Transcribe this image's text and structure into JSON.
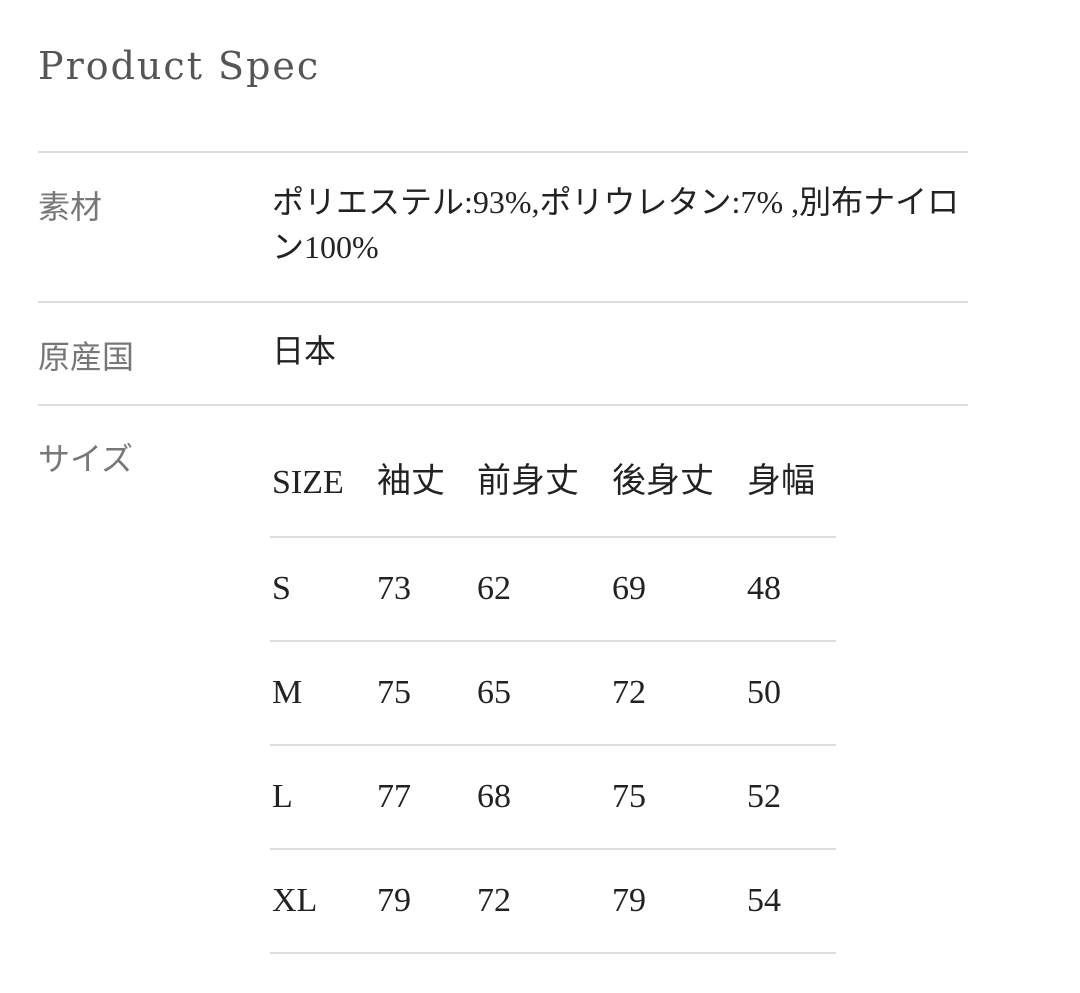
{
  "title": "Product Spec",
  "specs": [
    {
      "label": "素材",
      "value": "ポリエステル:93%,ポリウレタン:7% ,別布ナイロン100%"
    },
    {
      "label": "原産国",
      "value": "日本"
    },
    {
      "label": "サイズ"
    }
  ],
  "size_table": {
    "headers": [
      "SIZE",
      "袖丈",
      "前身丈",
      "後身丈",
      "身幅"
    ],
    "rows": [
      [
        "S",
        "73",
        "62",
        "69",
        "48"
      ],
      [
        "M",
        "75",
        "65",
        "72",
        "50"
      ],
      [
        "L",
        "77",
        "68",
        "75",
        "52"
      ],
      [
        "XL",
        "79",
        "72",
        "79",
        "54"
      ]
    ]
  }
}
